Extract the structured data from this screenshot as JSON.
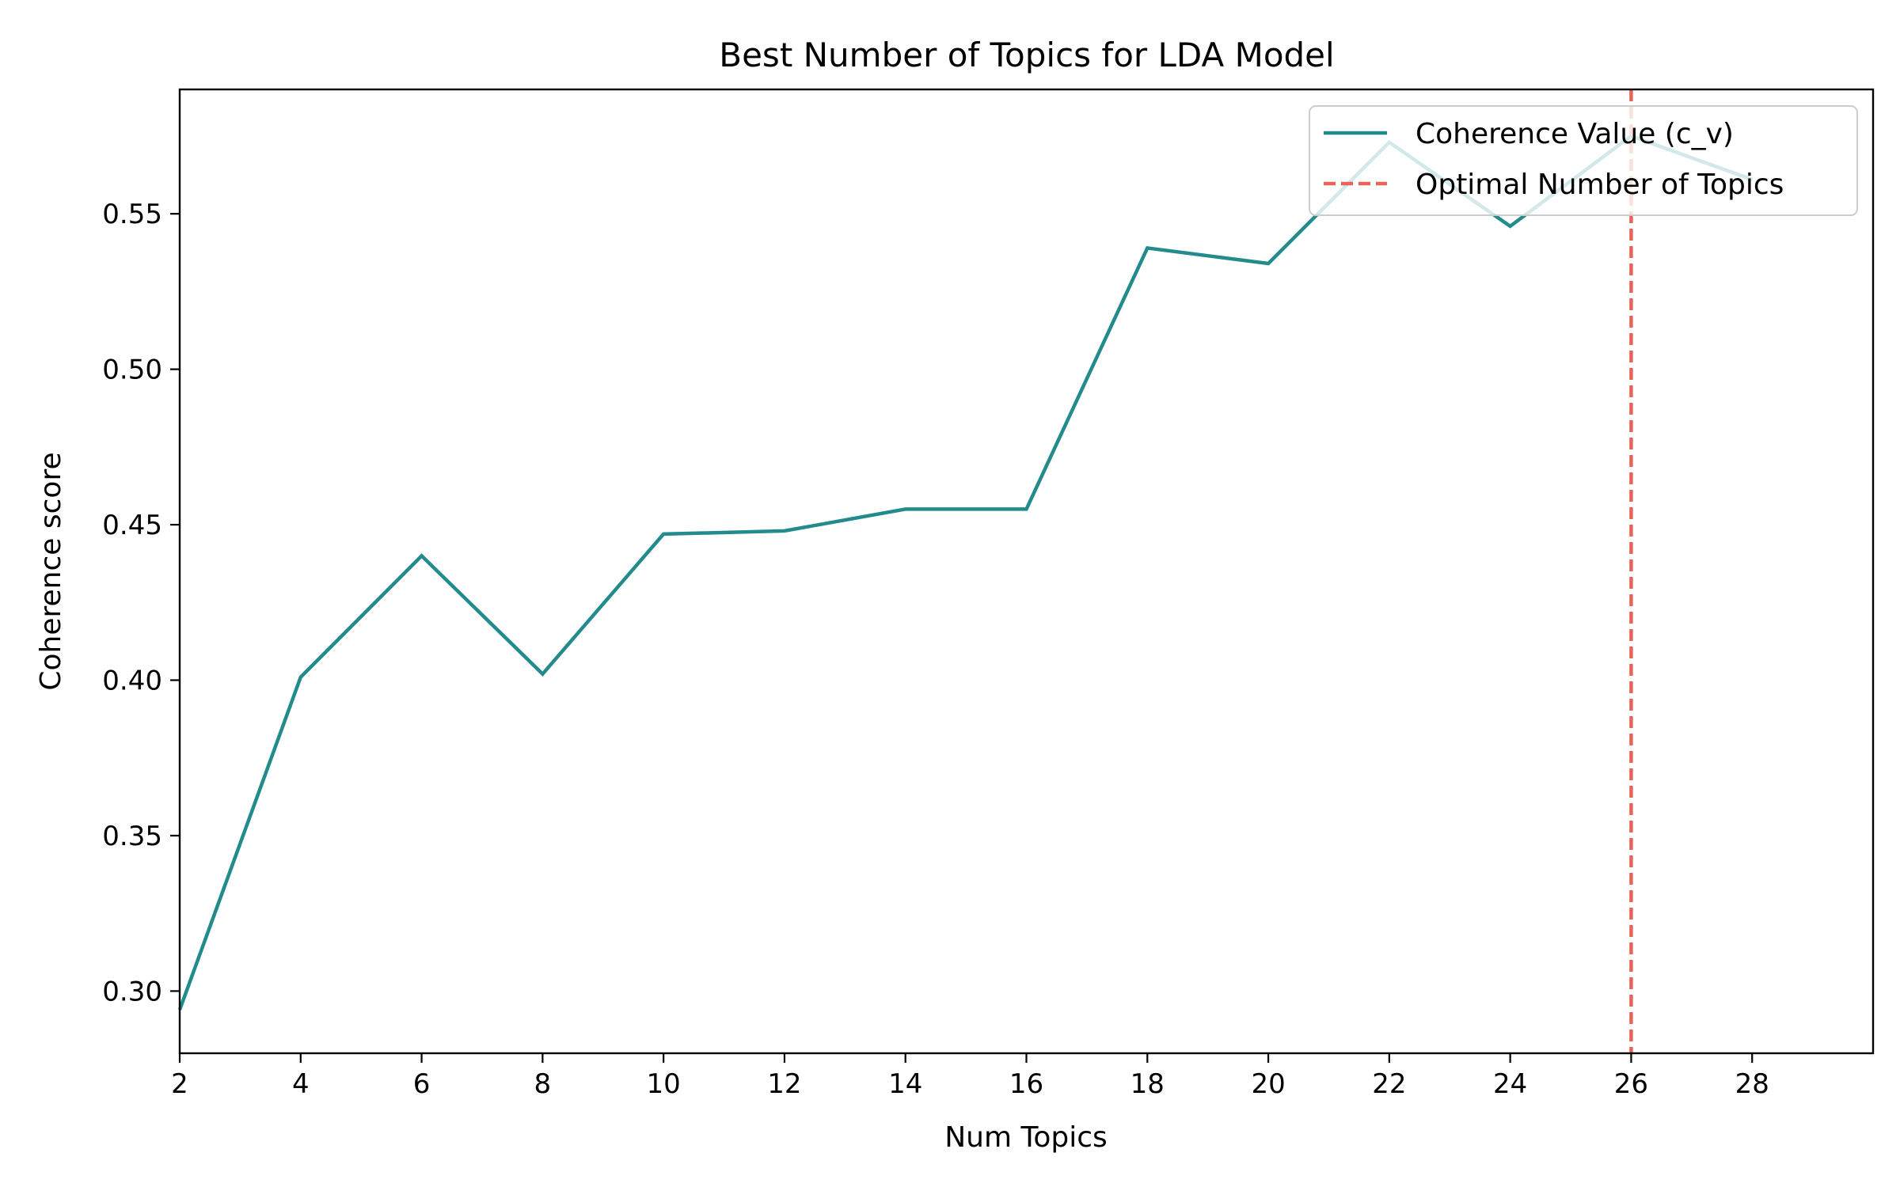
{
  "chart_data": {
    "type": "line",
    "title": "Best Number of Topics for LDA Model",
    "xlabel": "Num Topics",
    "ylabel": "Coherence score",
    "xlim": [
      2,
      30
    ],
    "ylim": [
      0.28,
      0.59
    ],
    "xticks": [
      2,
      4,
      6,
      8,
      10,
      12,
      14,
      16,
      18,
      20,
      22,
      24,
      26,
      28
    ],
    "yticks": [
      0.3,
      0.35,
      0.4,
      0.45,
      0.5,
      0.55
    ],
    "xtick_labels": [
      "2",
      "4",
      "6",
      "8",
      "10",
      "12",
      "14",
      "16",
      "18",
      "20",
      "22",
      "24",
      "26",
      "28"
    ],
    "ytick_labels": [
      "0.30",
      "0.35",
      "0.40",
      "0.45",
      "0.50",
      "0.55"
    ],
    "grid": false,
    "legend_position": "top-right",
    "series": [
      {
        "name": "Coherence Value (c_v)",
        "color": "#238b8b",
        "x": [
          2,
          4,
          6,
          8,
          10,
          12,
          14,
          16,
          18,
          20,
          22,
          24,
          26,
          28
        ],
        "values": [
          0.294,
          0.401,
          0.44,
          0.402,
          0.447,
          0.448,
          0.455,
          0.455,
          0.539,
          0.534,
          0.573,
          0.546,
          0.575,
          0.561
        ]
      }
    ],
    "reference_lines": [
      {
        "name": "Optimal Number of Topics",
        "orientation": "vertical",
        "x": 26,
        "color": "#e8645a",
        "style": "dashed"
      }
    ]
  }
}
